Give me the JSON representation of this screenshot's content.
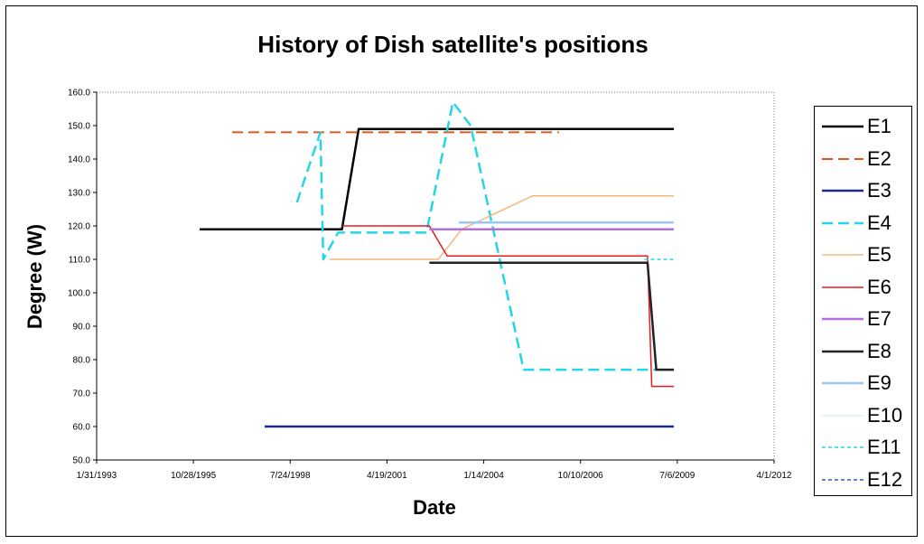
{
  "chart_data": {
    "type": "line",
    "title": "History of Dish satellite's positions",
    "xlabel": "Date",
    "ylabel": "Degree (W)",
    "xlim": [
      "1993-01-31",
      "2012-04-01"
    ],
    "ylim": [
      50,
      160
    ],
    "x_ticks": [
      "1/31/1993",
      "10/28/1995",
      "7/24/1998",
      "4/19/2001",
      "1/14/2004",
      "10/10/2006",
      "7/6/2009",
      "4/1/2012"
    ],
    "y_ticks": [
      "50.0",
      "60.0",
      "70.0",
      "80.0",
      "90.0",
      "100.0",
      "110.0",
      "120.0",
      "130.0",
      "140.0",
      "150.0",
      "160.0"
    ],
    "grid": false,
    "legend_position": "right",
    "series": [
      {
        "name": "E1",
        "color": "#000000",
        "dash": "solid",
        "width": 2.5,
        "points": [
          [
            "1996-01-01",
            119
          ],
          [
            "2000-01-10",
            119
          ],
          [
            "2000-07-01",
            149
          ],
          [
            "2009-06-01",
            149
          ]
        ]
      },
      {
        "name": "E2",
        "color": "#e2571b",
        "dash": "longdash",
        "width": 2,
        "points": [
          [
            "1996-12-01",
            148
          ],
          [
            "2006-03-01",
            148
          ]
        ]
      },
      {
        "name": "E3",
        "color": "#1c2a8c",
        "dash": "solid",
        "width": 2.5,
        "points": [
          [
            "1997-11-01",
            60
          ],
          [
            "2009-06-01",
            60
          ]
        ]
      },
      {
        "name": "E4",
        "color": "#22d6e6",
        "dash": "longdash",
        "width": 2.5,
        "points": [
          [
            "1998-10-01",
            127
          ],
          [
            "1999-06-01",
            148
          ],
          [
            "1999-07-01",
            110
          ],
          [
            "1999-12-01",
            118
          ],
          [
            "2002-06-01",
            118
          ],
          [
            "2003-03-01",
            157
          ],
          [
            "2003-09-01",
            150
          ],
          [
            "2005-03-01",
            77
          ],
          [
            "2009-06-01",
            77
          ]
        ]
      },
      {
        "name": "E5",
        "color": "#f7b77a",
        "dash": "solid",
        "width": 1.5,
        "points": [
          [
            "1999-09-01",
            110
          ],
          [
            "2002-10-01",
            110
          ],
          [
            "2003-06-01",
            119
          ],
          [
            "2005-06-01",
            129
          ],
          [
            "2009-06-01",
            129
          ]
        ]
      },
      {
        "name": "E6",
        "color": "#e11e1e",
        "dash": "solid",
        "width": 1.5,
        "points": [
          [
            "2000-01-10",
            120
          ],
          [
            "2002-07-01",
            120
          ],
          [
            "2003-01-01",
            111
          ],
          [
            "2008-09-01",
            111
          ],
          [
            "2008-10-15",
            72
          ],
          [
            "2009-06-01",
            72
          ]
        ]
      },
      {
        "name": "E7",
        "color": "#b66ddf",
        "dash": "solid",
        "width": 2.5,
        "points": [
          [
            "2002-07-01",
            119
          ],
          [
            "2009-06-01",
            119
          ]
        ]
      },
      {
        "name": "E8",
        "color": "#222222",
        "dash": "solid",
        "width": 2.5,
        "points": [
          [
            "2002-07-01",
            109
          ],
          [
            "2008-09-01",
            109
          ],
          [
            "2008-12-01",
            77
          ],
          [
            "2009-06-01",
            77
          ]
        ]
      },
      {
        "name": "E9",
        "color": "#9cc6f3",
        "dash": "solid",
        "width": 2.5,
        "points": [
          [
            "2003-05-01",
            121
          ],
          [
            "2009-06-01",
            121
          ]
        ]
      },
      {
        "name": "E10",
        "color": "#c7f2ee",
        "dash": "solid",
        "width": 1,
        "points": []
      },
      {
        "name": "E11",
        "color": "#22d6e6",
        "dash": "shortdash",
        "width": 1.5,
        "points": [
          [
            "2008-08-01",
            110
          ],
          [
            "2009-06-01",
            110
          ]
        ]
      },
      {
        "name": "E12",
        "color": "#2b5fb6",
        "dash": "shortdash",
        "width": 1.5,
        "points": []
      }
    ]
  }
}
